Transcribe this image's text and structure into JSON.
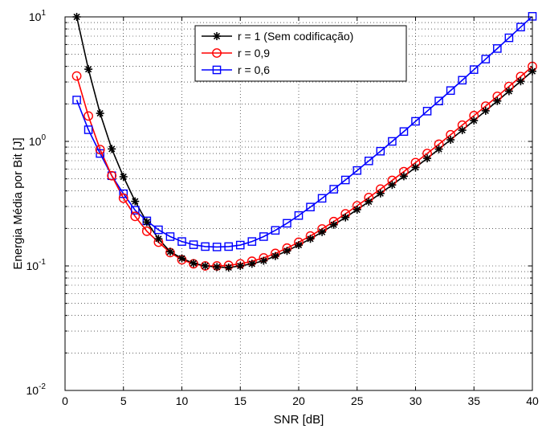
{
  "chart_data": {
    "type": "line",
    "title": "",
    "xlabel": "SNR [dB]",
    "ylabel": "Energia Média por Bit [J]",
    "xlim": [
      0,
      40
    ],
    "ylim": [
      0.01,
      10
    ],
    "yscale": "log",
    "grid": true,
    "legend_position": "top-center",
    "x_ticks": [
      0,
      5,
      10,
      15,
      20,
      25,
      30,
      35,
      40
    ],
    "y_ticks": [
      {
        "value": 0.01,
        "base": "10",
        "exp": "-2"
      },
      {
        "value": 0.1,
        "base": "10",
        "exp": "-1"
      },
      {
        "value": 1,
        "base": "10",
        "exp": "0"
      },
      {
        "value": 10,
        "base": "10",
        "exp": "1"
      }
    ],
    "x": [
      1,
      2,
      3,
      4,
      5,
      6,
      7,
      8,
      9,
      10,
      11,
      12,
      13,
      14,
      15,
      16,
      17,
      18,
      19,
      20,
      21,
      22,
      23,
      24,
      25,
      26,
      27,
      28,
      29,
      30,
      31,
      32,
      33,
      34,
      35,
      36,
      37,
      38,
      39,
      40
    ],
    "series": [
      {
        "name": "r = 1 (Sem codificação)",
        "color": "#000000",
        "marker": "asterisk",
        "values": [
          10,
          3.8,
          1.68,
          0.87,
          0.52,
          0.33,
          0.225,
          0.165,
          0.13,
          0.115,
          0.105,
          0.1,
          0.098,
          0.097,
          0.1,
          0.104,
          0.11,
          0.12,
          0.132,
          0.147,
          0.165,
          0.187,
          0.214,
          0.245,
          0.283,
          0.328,
          0.382,
          0.447,
          0.525,
          0.618,
          0.731,
          0.867,
          1.03,
          1.23,
          1.47,
          1.76,
          2.11,
          2.53,
          3.04,
          3.66
        ]
      },
      {
        "name": "r = 0,9",
        "color": "#ff0000",
        "marker": "circle",
        "values": [
          3.35,
          1.6,
          0.86,
          0.53,
          0.35,
          0.25,
          0.19,
          0.155,
          0.128,
          0.112,
          0.104,
          0.1,
          0.1,
          0.101,
          0.104,
          0.109,
          0.116,
          0.126,
          0.139,
          0.155,
          0.174,
          0.198,
          0.227,
          0.262,
          0.304,
          0.354,
          0.414,
          0.486,
          0.572,
          0.676,
          0.8,
          0.949,
          1.13,
          1.35,
          1.61,
          1.92,
          2.3,
          2.76,
          3.32,
          4.0
        ]
      },
      {
        "name": "r = 0,6",
        "color": "#0000ff",
        "marker": "square",
        "values": [
          2.15,
          1.24,
          0.8,
          0.53,
          0.38,
          0.28,
          0.23,
          0.195,
          0.172,
          0.157,
          0.148,
          0.143,
          0.142,
          0.143,
          0.147,
          0.157,
          0.172,
          0.193,
          0.22,
          0.254,
          0.297,
          0.349,
          0.413,
          0.49,
          0.584,
          0.697,
          0.834,
          1.0,
          1.2,
          1.45,
          1.75,
          2.11,
          2.56,
          3.1,
          3.77,
          4.58,
          5.57,
          6.79,
          8.28,
          10.1
        ]
      }
    ]
  }
}
